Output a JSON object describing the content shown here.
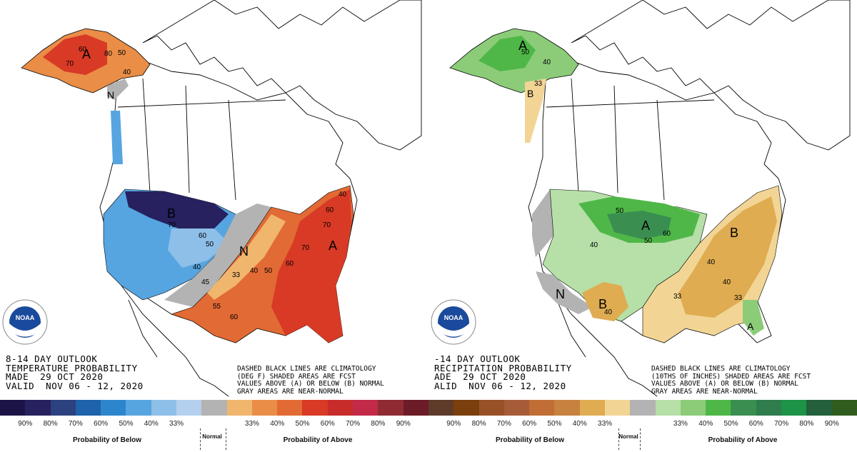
{
  "left_map": {
    "title_lines": [
      "8-14 DAY OUTLOOK",
      "TEMPERATURE PROBABILITY",
      "MADE  29 OCT 2020",
      "VALID  NOV 06 - 12, 2020"
    ],
    "note_lines": [
      "DASHED BLACK LINES ARE CLIMATOLOGY",
      "(DEG F) SHADED AREAS ARE FCST",
      "VALUES ABOVE (A) OR BELOW (B) NORMAL",
      "GRAY AREAS ARE NEAR-NORMAL"
    ],
    "region_letters": {
      "alaska": "A",
      "pnw": "N",
      "north_plains": "B",
      "mid": "N",
      "east": "A"
    },
    "contour_labels": {
      "ak1": "60",
      "ak2": "50",
      "ak3": "70",
      "ak4": "40",
      "ak5": "80",
      "b1": "70",
      "b2": "60",
      "b3": "50",
      "b4": "40",
      "n1": "33",
      "n2": "45",
      "n3": "40",
      "e1": "50",
      "e2": "60",
      "e3": "70",
      "e4": "60",
      "e5": "70",
      "e6": "40",
      "s1": "55",
      "s2": "60"
    },
    "logo_text": "NOAA"
  },
  "right_map": {
    "title_lines": [
      "-14 DAY OUTLOOK",
      "RECIPITATION PROBABILITY",
      "ADE  29 OCT 2020",
      "ALID  NOV 06 - 12, 2020"
    ],
    "note_lines": [
      "DASHED BLACK LINES ARE CLIMATOLOGY",
      "(10THS OF INCHES) SHADED AREAS ARE FCST",
      "VALUES ABOVE (A) OR BELOW (B) NORMAL",
      "GRAY AREAS ARE NEAR-NORMAL"
    ],
    "region_letters": {
      "alaska": "A",
      "pnw": "B",
      "sw": "N",
      "texas": "B",
      "north_plains": "A",
      "east": "B",
      "se": "A"
    },
    "contour_labels": {
      "ak1": "50",
      "ak2": "40",
      "ak3": "33",
      "p1": "40",
      "p2": "50",
      "p3": "60",
      "p4": "50",
      "e1": "40",
      "e2": "40",
      "e3": "33",
      "e4": "33",
      "t1": "40"
    },
    "logo_text": "NOAA"
  },
  "temp_legend": {
    "colors": [
      "#1c1446",
      "#27215f",
      "#2c417f",
      "#1d62aa",
      "#2d86cc",
      "#56a5e0",
      "#8ebfe8",
      "#b4d0ee",
      "#b3b3b3",
      "#f0b66d",
      "#e98d47",
      "#e26a34",
      "#d83a25",
      "#c72c2b",
      "#c32a48",
      "#8f2b32",
      "#6b1c26"
    ],
    "ticks": [
      "90%",
      "80%",
      "70%",
      "60%",
      "50%",
      "40%",
      "33%",
      "33%",
      "40%",
      "50%",
      "60%",
      "70%",
      "80%",
      "90%"
    ],
    "below_label": "Probability of Below",
    "normal_label": "Normal",
    "above_label": "Probability of Above"
  },
  "precip_legend": {
    "colors": [
      "#5e3a2a",
      "#7a3f0d",
      "#985026",
      "#a65c38",
      "#c06d36",
      "#c6823e",
      "#dfac51",
      "#f2d595",
      "#b3b3b3",
      "#b6e0a7",
      "#8ccc79",
      "#4fb748",
      "#3a8f50",
      "#2f7c4d",
      "#1c9347",
      "#23603b",
      "#305d1d"
    ],
    "ticks": [
      "90%",
      "80%",
      "70%",
      "60%",
      "50%",
      "40%",
      "33%",
      "33%",
      "40%",
      "50%",
      "60%",
      "70%",
      "80%",
      "90%"
    ],
    "below_label": "Probability of Below",
    "normal_label": "Normal",
    "above_label": "Probability of Above"
  }
}
